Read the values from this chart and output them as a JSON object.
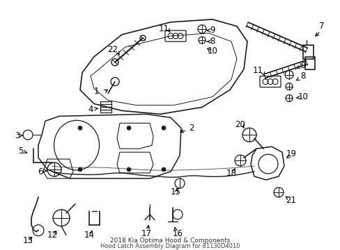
{
  "title1": "2018 Kia Optima Hood & Components",
  "title2": "Hood Latch Assembly Diagram for 81130D4010",
  "bg_color": "#ffffff",
  "line_color": "#1a1a1a",
  "label_fontsize": 8.5,
  "label_color": "#000000"
}
